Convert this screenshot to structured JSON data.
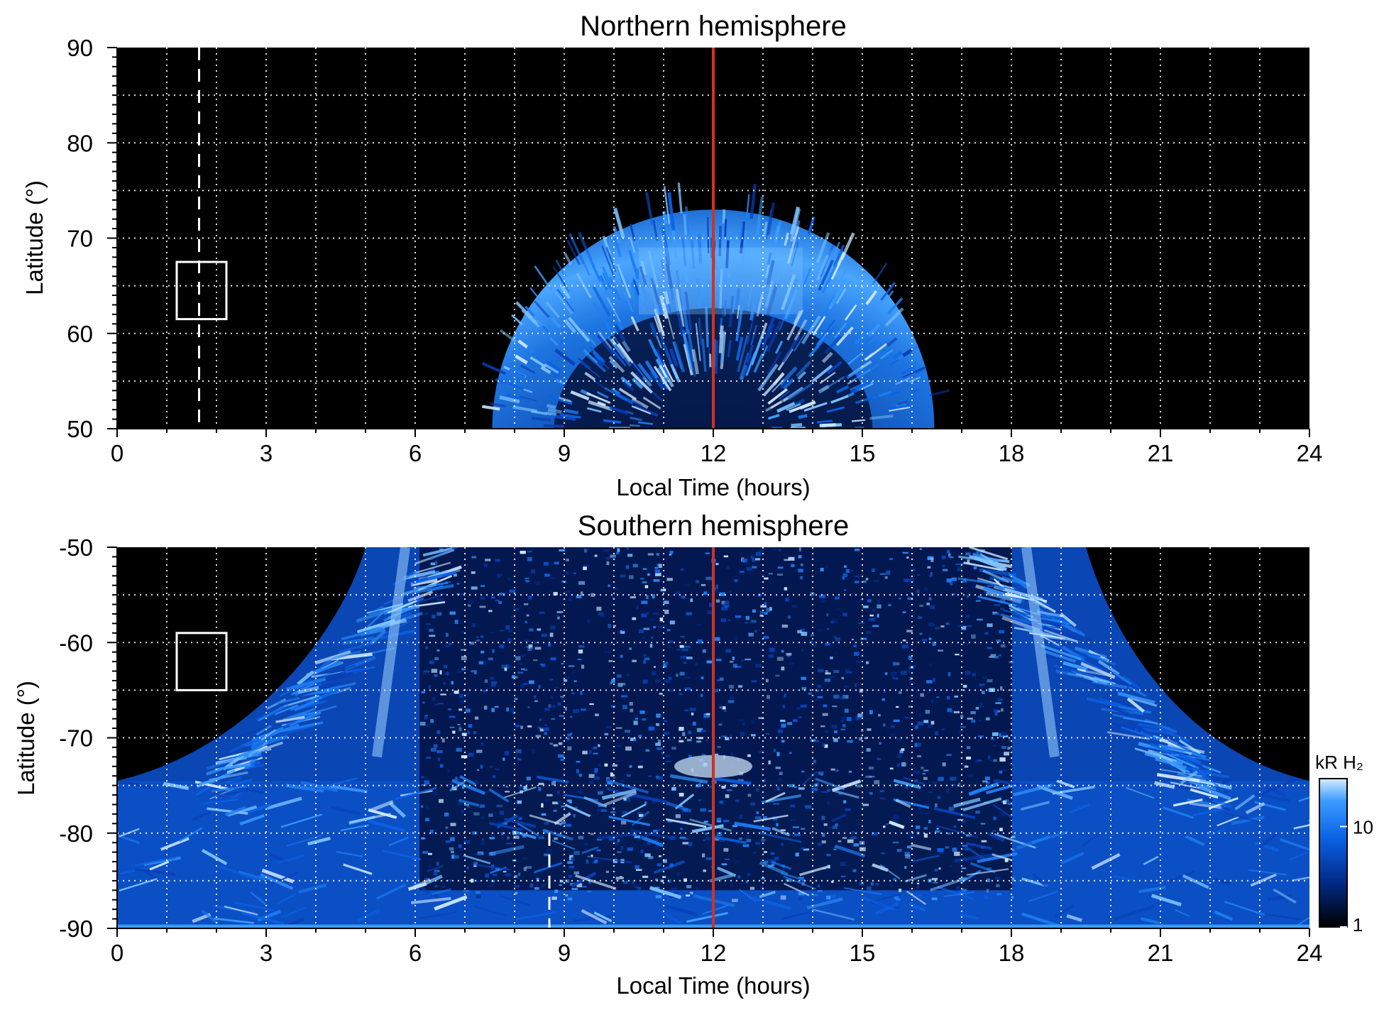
{
  "chart_data": [
    {
      "type": "heatmap",
      "title": "Northern hemisphere",
      "xlabel": "Local Time (hours)",
      "ylabel": "Latitude (°)",
      "xlim": [
        0,
        24
      ],
      "ylim": [
        50,
        90
      ],
      "xticks": [
        "0",
        "3",
        "6",
        "9",
        "12",
        "15",
        "18",
        "21",
        "24"
      ],
      "yticks": [
        "50",
        "60",
        "70",
        "80",
        "90"
      ],
      "grid": true,
      "reference_line_local_time": 12,
      "reference_line_color": "#d2321e",
      "dashed_marker_local_time": 1.65,
      "box_marker": {
        "local_time": [
          1.2,
          2.2
        ],
        "latitude": [
          61.5,
          67.5
        ]
      },
      "emission_region": {
        "shape": "dome",
        "local_time_span_at_50": [
          7.6,
          16.5
        ],
        "max_latitude": 73,
        "bright_band_latitude": [
          62,
          69
        ],
        "bright_patch_local_time": [
          10.5,
          13.8
        ]
      }
    },
    {
      "type": "heatmap",
      "title": "Southern hemisphere",
      "xlabel": "Local Time (hours)",
      "ylabel": "Latitude (°)",
      "xlim": [
        0,
        24
      ],
      "ylim": [
        -90,
        -50
      ],
      "xticks": [
        "0",
        "3",
        "6",
        "9",
        "12",
        "15",
        "18",
        "21",
        "24"
      ],
      "yticks": [
        "-90",
        "-80",
        "-70",
        "-60",
        "-50"
      ],
      "grid": true,
      "reference_line_local_time": 12,
      "reference_line_color": "#d2321e",
      "dashed_marker_local_time": 8.7,
      "box_marker": {
        "local_time": [
          1.2,
          2.2
        ],
        "latitude": [
          -65,
          -59
        ]
      },
      "emission_region": {
        "shape": "arch",
        "local_time_span_at_minus50": [
          5.0,
          19.5
        ],
        "black_region_lower_latitude": -74.5,
        "bright_rims_local_time": [
          5.8,
          18.3
        ],
        "bright_spot": {
          "local_time": 12,
          "latitude": -73
        }
      }
    }
  ],
  "colorbar": {
    "label": "kR H₂",
    "ticks": [
      "1",
      "10"
    ],
    "scale": "log",
    "range": [
      1,
      30
    ],
    "colors": [
      "#000000",
      "#002a86",
      "#0b62e6",
      "#3a9cff",
      "#bfe2ff"
    ]
  }
}
